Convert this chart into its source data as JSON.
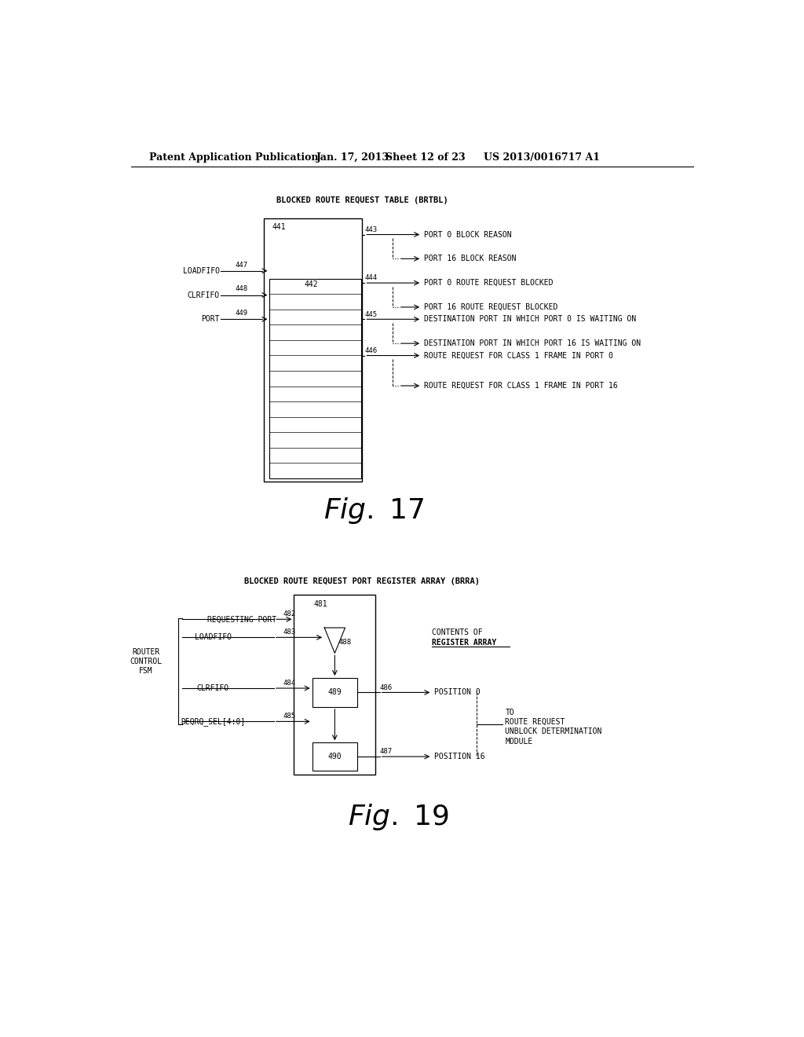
{
  "bg_color": "#ffffff",
  "header_text": "Patent Application Publication",
  "header_date": "Jan. 17, 2013",
  "header_sheet": "Sheet 12 of 23",
  "header_patent": "US 2013/0016717 A1",
  "fig1_title": "BLOCKED ROUTE REQUEST TABLE (BRTBL)",
  "fig1_label": "Fig. 17",
  "fig2_title": "BLOCKED ROUTE REQUEST PORT REGISTER ARRAY (BRRA)",
  "fig2_label": "Fig. 19"
}
